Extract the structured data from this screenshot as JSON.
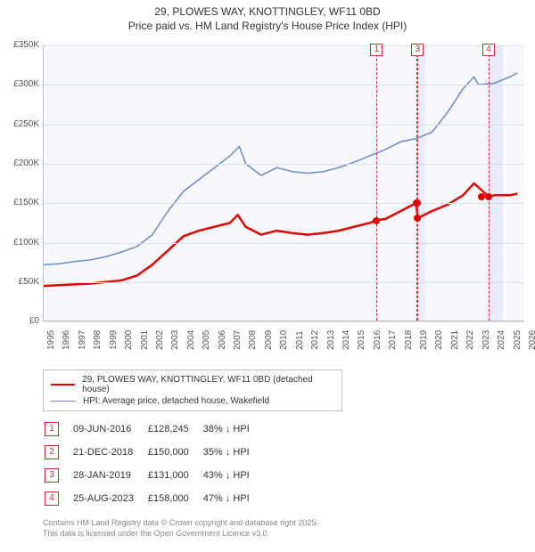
{
  "title": {
    "line1": "29, PLOWES WAY, KNOTTINGLEY, WF11 0BD",
    "line2": "Price paid vs. HM Land Registry's House Price Index (HPI)",
    "font_size": 12,
    "color": "#333333"
  },
  "chart": {
    "type": "line",
    "background": "#f6f8fc",
    "grid_color": "#dde3ee",
    "axis_color": "#c0c0c0",
    "xlim": [
      1995,
      2026
    ],
    "ylim": [
      0,
      350000
    ],
    "ytick_step": 50000,
    "ytick_labels": [
      "£0",
      "£50K",
      "£100K",
      "£150K",
      "£200K",
      "£250K",
      "£300K",
      "£350K"
    ],
    "xtick_step": 1,
    "xtick_labels": [
      "1995",
      "1996",
      "1997",
      "1998",
      "1999",
      "2000",
      "2001",
      "2002",
      "2003",
      "2004",
      "2005",
      "2006",
      "2007",
      "2008",
      "2009",
      "2010",
      "2011",
      "2012",
      "2013",
      "2014",
      "2015",
      "2016",
      "2017",
      "2018",
      "2019",
      "2020",
      "2021",
      "2022",
      "2023",
      "2024",
      "2025",
      "2026"
    ],
    "label_fontsize": 10,
    "label_color": "#555555",
    "series": [
      {
        "name": "29, PLOWES WAY, KNOTTINGLEY, WF11 0BD (detached house)",
        "color": "#e00000",
        "line_width": 2.5,
        "data": [
          [
            1995,
            45000
          ],
          [
            1996,
            46000
          ],
          [
            1997,
            47000
          ],
          [
            1998,
            48000
          ],
          [
            1999,
            50000
          ],
          [
            2000,
            52000
          ],
          [
            2001,
            58000
          ],
          [
            2002,
            72000
          ],
          [
            2003,
            90000
          ],
          [
            2004,
            108000
          ],
          [
            2005,
            115000
          ],
          [
            2006,
            120000
          ],
          [
            2007,
            125000
          ],
          [
            2007.5,
            135000
          ],
          [
            2008,
            120000
          ],
          [
            2009,
            110000
          ],
          [
            2010,
            115000
          ],
          [
            2011,
            112000
          ],
          [
            2012,
            110000
          ],
          [
            2013,
            112000
          ],
          [
            2014,
            115000
          ],
          [
            2015,
            120000
          ],
          [
            2016,
            125000
          ],
          [
            2016.44,
            128245
          ],
          [
            2017,
            130000
          ],
          [
            2018,
            140000
          ],
          [
            2018.97,
            150000
          ],
          [
            2019.08,
            131000
          ],
          [
            2019.5,
            135000
          ],
          [
            2020,
            140000
          ],
          [
            2021,
            148000
          ],
          [
            2022,
            160000
          ],
          [
            2022.7,
            175000
          ],
          [
            2023,
            170000
          ],
          [
            2023.65,
            158000
          ],
          [
            2024,
            160000
          ],
          [
            2025,
            160000
          ],
          [
            2025.5,
            162000
          ]
        ]
      },
      {
        "name": "HPI: Average price, detached house, Wakefield",
        "color": "#6b8bc6",
        "line_width": 1.5,
        "data": [
          [
            1995,
            72000
          ],
          [
            1996,
            73000
          ],
          [
            1997,
            76000
          ],
          [
            1998,
            78000
          ],
          [
            1999,
            82000
          ],
          [
            2000,
            88000
          ],
          [
            2001,
            95000
          ],
          [
            2002,
            110000
          ],
          [
            2003,
            140000
          ],
          [
            2004,
            165000
          ],
          [
            2005,
            180000
          ],
          [
            2006,
            195000
          ],
          [
            2007,
            210000
          ],
          [
            2007.6,
            222000
          ],
          [
            2008,
            200000
          ],
          [
            2009,
            185000
          ],
          [
            2010,
            195000
          ],
          [
            2011,
            190000
          ],
          [
            2012,
            188000
          ],
          [
            2013,
            190000
          ],
          [
            2014,
            195000
          ],
          [
            2015,
            202000
          ],
          [
            2016,
            210000
          ],
          [
            2017,
            218000
          ],
          [
            2018,
            228000
          ],
          [
            2019,
            232000
          ],
          [
            2020,
            240000
          ],
          [
            2021,
            265000
          ],
          [
            2022,
            295000
          ],
          [
            2022.7,
            310000
          ],
          [
            2023,
            300000
          ],
          [
            2024,
            302000
          ],
          [
            2025,
            310000
          ],
          [
            2025.5,
            315000
          ]
        ]
      }
    ],
    "markers": [
      {
        "index": "1",
        "x": 2016.44,
        "highlight": false
      },
      {
        "index": "2",
        "x": 2018.97,
        "highlight": false,
        "hide_label": true
      },
      {
        "index": "3",
        "x": 2019.08,
        "highlight": true,
        "span": 0.5
      },
      {
        "index": "4",
        "x": 2023.65,
        "highlight": true,
        "span": 0.9
      }
    ],
    "points": [
      {
        "x": 2016.44,
        "y": 128245
      },
      {
        "x": 2018.97,
        "y": 150000
      },
      {
        "x": 2019.08,
        "y": 150000
      },
      {
        "x": 2019.08,
        "y": 131000
      },
      {
        "x": 2023.65,
        "y": 158000
      },
      {
        "x": 2023.2,
        "y": 158000
      }
    ],
    "point_color": "#e00000"
  },
  "legend": {
    "items": [
      {
        "color": "#e00000",
        "width": 2.5,
        "label": "29, PLOWES WAY, KNOTTINGLEY, WF11 0BD (detached house)"
      },
      {
        "color": "#6b8bc6",
        "width": 1.5,
        "label": "HPI: Average price, detached house, Wakefield"
      }
    ],
    "font_size": 10,
    "border_color": "#c0c0c0"
  },
  "table": {
    "rows": [
      {
        "idx": "1",
        "date": "09-JUN-2016",
        "price": "£128,245",
        "delta": "38% ↓ HPI"
      },
      {
        "idx": "2",
        "date": "21-DEC-2018",
        "price": "£150,000",
        "delta": "35% ↓ HPI"
      },
      {
        "idx": "3",
        "date": "28-JAN-2019",
        "price": "£131,000",
        "delta": "43% ↓ HPI"
      },
      {
        "idx": "4",
        "date": "25-AUG-2023",
        "price": "£158,000",
        "delta": "47% ↓ HPI"
      }
    ],
    "font_size": 11,
    "idx_color": "#d03030"
  },
  "footer": {
    "line1": "Contains HM Land Registry data © Crown copyright and database right 2025.",
    "line2": "This data is licensed under the Open Government Licence v3.0.",
    "color": "#888888",
    "font_size": 9
  }
}
